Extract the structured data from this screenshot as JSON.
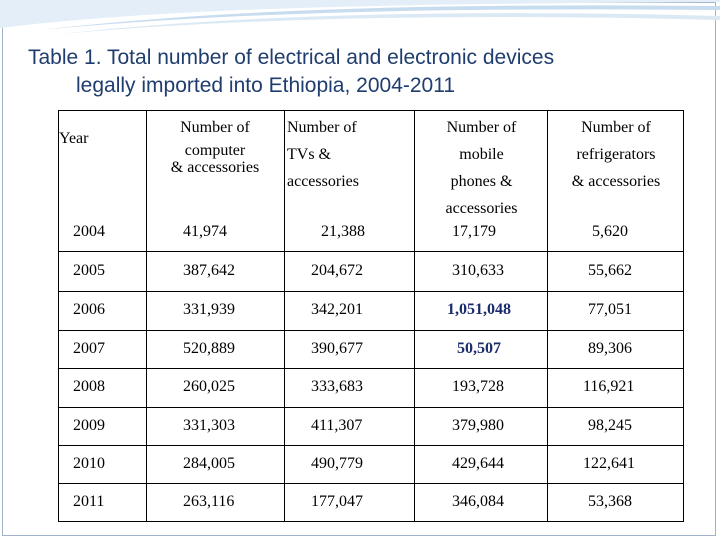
{
  "title": {
    "line1": "Table 1. Total number of electrical and electronic devices",
    "line2": "legally imported into Ethiopia, 2004-2011"
  },
  "table": {
    "headers": {
      "year": "Year",
      "computer_1": "Number of",
      "computer_2": "computer",
      "computer_3": "& accessories",
      "tv_1": "Number of",
      "tv_2": "TVs &",
      "tv_3": "accessories",
      "mobile_1": "Number of",
      "mobile_2": "mobile",
      "mobile_3": "phones &",
      "mobile_4": "accessories",
      "fridge_1": "Number of",
      "fridge_2": "refrigerators",
      "fridge_3": "& accessories"
    },
    "rows": [
      {
        "year": "2004",
        "computer": "41,974",
        "tv": "21,388",
        "mobile": "17,179",
        "fridge": "5,620"
      },
      {
        "year": "2005",
        "computer": "387,642",
        "tv": "204,672",
        "mobile": "310,633",
        "fridge": "55,662"
      },
      {
        "year": "2006",
        "computer": "331,939",
        "tv": "342,201",
        "mobile": "1,051,048",
        "fridge": "77,051"
      },
      {
        "year": "2007",
        "computer": "520,889",
        "tv": "390,677",
        "mobile": "50,507",
        "fridge": "89,306"
      },
      {
        "year": "2008",
        "computer": "260,025",
        "tv": "333,683",
        "mobile": "193,728",
        "fridge": "116,921"
      },
      {
        "year": "2009",
        "computer": "331,303",
        "tv": "411,307",
        "mobile": "379,980",
        "fridge": "98,245"
      },
      {
        "year": "2010",
        "computer": "284,005",
        "tv": "490,779",
        "mobile": "429,644",
        "fridge": "122,641"
      },
      {
        "year": "2011",
        "computer": "263,116",
        "tv": "177,047",
        "mobile": "346,084",
        "fridge": "53,368"
      }
    ]
  },
  "colors": {
    "title": "#1f3d6e",
    "highlight": "#1a2a6c",
    "swoosh": "#cfe3f3"
  }
}
